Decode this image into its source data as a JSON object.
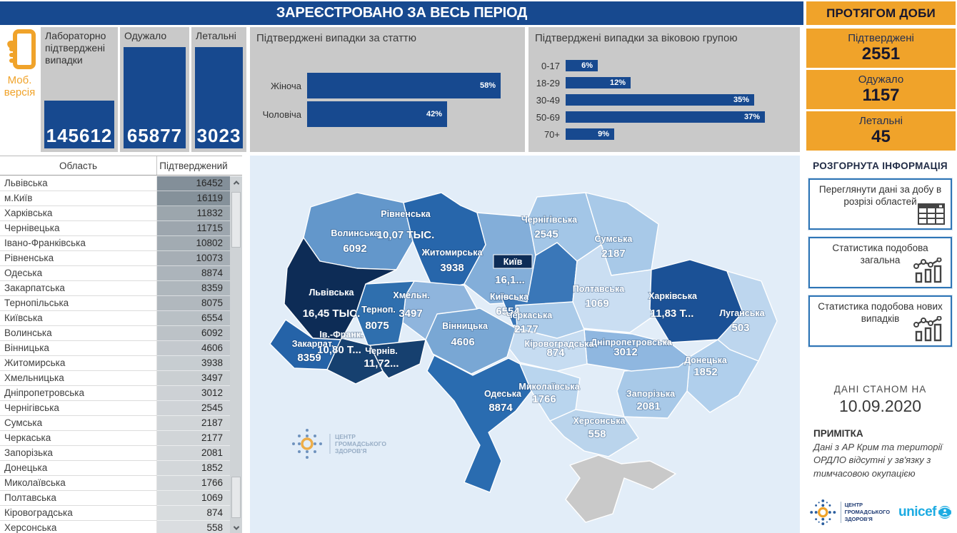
{
  "header": {
    "title": "ЗАРЕЄСТРОВАНО ЗА ВЕСЬ ПЕРІОД"
  },
  "mobile": {
    "line1": "Моб.",
    "line2": "версія",
    "icon": "mobile-phone-icon",
    "accent_color": "#f0a32a"
  },
  "stat_cards": [
    {
      "label": "Лабораторно підтверджені випадки",
      "value": "145612"
    },
    {
      "label": "Одужало",
      "value": "65877"
    },
    {
      "label": "Летальні",
      "value": "3023"
    }
  ],
  "chart_data": [
    {
      "type": "bar",
      "orientation": "horizontal",
      "title": "Підтверджені випадки за статтю",
      "categories": [
        "Жіноча",
        "Чоловіча"
      ],
      "values": [
        58,
        42
      ],
      "unit": "%",
      "axis_max": 60,
      "bar_color": "#17498f",
      "grid": false,
      "legend": "none"
    },
    {
      "type": "bar",
      "orientation": "horizontal",
      "title": "Підтверджені випадки за віковою групою",
      "categories": [
        "0-17",
        "18-29",
        "30-49",
        "50-69",
        "70+"
      ],
      "values": [
        6,
        12,
        35,
        37,
        9
      ],
      "unit": "%",
      "axis_max": 40,
      "bar_color": "#17498f",
      "grid": false,
      "legend": "none"
    }
  ],
  "daily_panel": {
    "title": "ПРОТЯГОМ ДОБИ",
    "cards": [
      {
        "label": "Підтверджені",
        "value": "2551"
      },
      {
        "label": "Одужало",
        "value": "1157"
      },
      {
        "label": "Летальні",
        "value": "45"
      }
    ],
    "section_title": "РОЗГОРНУТА ІНФОРМАЦІЯ",
    "buttons": [
      {
        "label": "Переглянути дані за добу в розрізі областей",
        "icon": "table-grid-icon"
      },
      {
        "label": "Статистика подобова загальна",
        "icon": "line-bar-chart-icon"
      },
      {
        "label": "Статистика подобова нових випадків",
        "icon": "line-bar-chart-icon"
      }
    ],
    "asof_label": "ДАНІ СТАНОМ НА",
    "asof_date": "10.09.2020",
    "note_title": "ПРИМІТКА",
    "note_text": "Дані з АР Крим та території ОРДЛО відсутні у зв'язку з тимчасовою окупацією",
    "logos": {
      "phc_lines": [
        "ЦЕНТР",
        "ГРОМАДСЬКОГО",
        "ЗДОРОВ'Я"
      ],
      "unicef": "unicef",
      "unicef_color": "#1cabe2"
    }
  },
  "table": {
    "columns": [
      "Область",
      "Підтверджений"
    ],
    "max_value": 16452,
    "rows": [
      {
        "name": "Львівська",
        "value": 16452
      },
      {
        "name": "м.Київ",
        "value": 16119
      },
      {
        "name": "Харківська",
        "value": 11832
      },
      {
        "name": "Чернівецька",
        "value": 11715
      },
      {
        "name": "Івано-Франківська",
        "value": 10802
      },
      {
        "name": "Рівненська",
        "value": 10073
      },
      {
        "name": "Одеська",
        "value": 8874
      },
      {
        "name": "Закарпатська",
        "value": 8359
      },
      {
        "name": "Тернопільська",
        "value": 8075
      },
      {
        "name": "Київська",
        "value": 6554
      },
      {
        "name": "Волинська",
        "value": 6092
      },
      {
        "name": "Вінницька",
        "value": 4606
      },
      {
        "name": "Житомирська",
        "value": 3938
      },
      {
        "name": "Хмельницька",
        "value": 3497
      },
      {
        "name": "Дніпропетровська",
        "value": 3012
      },
      {
        "name": "Чернігівська",
        "value": 2545
      },
      {
        "name": "Сумська",
        "value": 2187
      },
      {
        "name": "Черкаська",
        "value": 2177
      },
      {
        "name": "Запорізька",
        "value": 2081
      },
      {
        "name": "Донецька",
        "value": 1852
      },
      {
        "name": "Миколаївська",
        "value": 1766
      },
      {
        "name": "Полтавська",
        "value": 1069
      },
      {
        "name": "Кіровоградська",
        "value": 874
      },
      {
        "name": "Херсонська",
        "value": 558
      }
    ]
  },
  "map": {
    "regions": [
      {
        "name": "Волинська",
        "value": "6092",
        "color": "#6397cb"
      },
      {
        "name": "Рівненська",
        "value": "10,07 ТЫС.",
        "color": "#2766ab"
      },
      {
        "name": "Житомирська",
        "value": "3938",
        "color": "#83aed9"
      },
      {
        "name": "Чернігівська",
        "value": "2545",
        "color": "#a3c6e7"
      },
      {
        "name": "Сумська",
        "value": "2187",
        "color": "#a8c9e8"
      },
      {
        "name": "Київська",
        "value": "6554",
        "color": "#3a77b8"
      },
      {
        "name": "Полтавська",
        "value": "1069",
        "color": "#cadef2"
      },
      {
        "name": "Харківська",
        "value": "11,83 Т...",
        "color": "#1b5196"
      },
      {
        "name": "Луганська",
        "value": "503",
        "color": "#bdd6ee"
      },
      {
        "name": "Донецька",
        "value": "1852",
        "color": "#b0cfec"
      },
      {
        "name": "Запорізька",
        "value": "2081",
        "color": "#a8c9e8"
      },
      {
        "name": "Дніпропетровська",
        "value": "3012",
        "color": "#8fb7e0"
      },
      {
        "name": "Кіровоградська",
        "value": "874",
        "color": "#c6dcf1"
      },
      {
        "name": "Черкаська",
        "value": "2177",
        "color": "#abcbe9"
      },
      {
        "name": "Вінницька",
        "value": "4606",
        "color": "#79a7d4"
      },
      {
        "name": "Хмельн.",
        "value": "3497",
        "color": "#8fb5dd"
      },
      {
        "name": "Терноп.",
        "value": "8075",
        "color": "#2f6fae"
      },
      {
        "name": "Львівська",
        "value": "16,45 ТЫС.",
        "color": "#0d2c56"
      },
      {
        "name": "Закарпат.",
        "value": "8359",
        "color": "#2563a8"
      },
      {
        "name": "Ів.-Франк.",
        "value": "10,80 Т...",
        "color": "#16406f"
      },
      {
        "name": "Чернів.",
        "value": "11,72...",
        "color": "#16406f"
      },
      {
        "name": "Одеська",
        "value": "8874",
        "color": "#2a6cb0"
      },
      {
        "name": "Миколаївська",
        "value": "1766",
        "color": "#b9d5ee"
      },
      {
        "name": "Херсонська",
        "value": "558",
        "color": "#bad4ec"
      }
    ],
    "kyiv_label": {
      "name": "Київ",
      "value": "16,1...",
      "box_color": "#0d2c56"
    },
    "crimea_color": "#c9c9c9",
    "sea_color": "#e2edf8",
    "watermark_lines": [
      "ЦЕНТР",
      "ГРОМАДСЬКОГО",
      "ЗДОРОВ'Я"
    ]
  },
  "colors": {
    "primary_blue": "#17498f",
    "accent_orange": "#f0a32a",
    "panel_gray": "#c9c9c9"
  }
}
